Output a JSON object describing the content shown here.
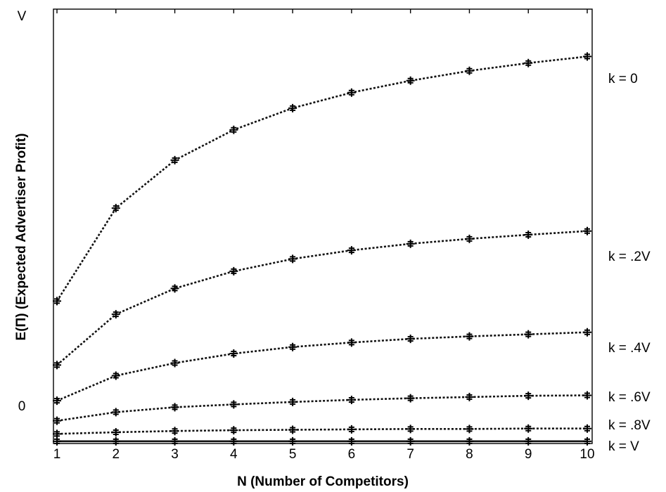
{
  "chart_data": {
    "type": "line",
    "xlabel": "N (Number of Competitors)",
    "ylabel": "E(Π)  (Expected Advertiser Profit)",
    "x": [
      1,
      2,
      3,
      4,
      5,
      6,
      7,
      8,
      9,
      10
    ],
    "xlim": [
      1,
      10
    ],
    "ylim": [
      0,
      1
    ],
    "y_tick_labels": [
      {
        "value": 0,
        "label": "0"
      },
      {
        "value": 1,
        "label": "V"
      }
    ],
    "y_unit": "fraction of V",
    "grid": false,
    "legend": "inline labels at right end of each curve",
    "series": [
      {
        "name": "k = 0",
        "values": [
          0.308,
          0.535,
          0.652,
          0.726,
          0.779,
          0.817,
          0.846,
          0.87,
          0.889,
          0.905
        ]
      },
      {
        "name": "k = .2V",
        "values": [
          0.152,
          0.276,
          0.339,
          0.381,
          0.411,
          0.432,
          0.448,
          0.46,
          0.47,
          0.479
        ]
      },
      {
        "name": "k = .4V",
        "values": [
          0.065,
          0.126,
          0.157,
          0.18,
          0.196,
          0.207,
          0.216,
          0.222,
          0.227,
          0.232
        ]
      },
      {
        "name": "k = .6V",
        "values": [
          0.016,
          0.037,
          0.049,
          0.056,
          0.062,
          0.067,
          0.071,
          0.074,
          0.077,
          0.078
        ]
      },
      {
        "name": "k = .8V",
        "values": [
          -0.016,
          -0.012,
          -0.009,
          -0.007,
          -0.006,
          -0.005,
          -0.004,
          -0.004,
          -0.003,
          -0.003
        ]
      },
      {
        "name": "k = V",
        "values": [
          -0.034,
          -0.034,
          -0.034,
          -0.034,
          -0.034,
          -0.034,
          -0.034,
          -0.034,
          -0.034,
          -0.034
        ]
      }
    ]
  }
}
